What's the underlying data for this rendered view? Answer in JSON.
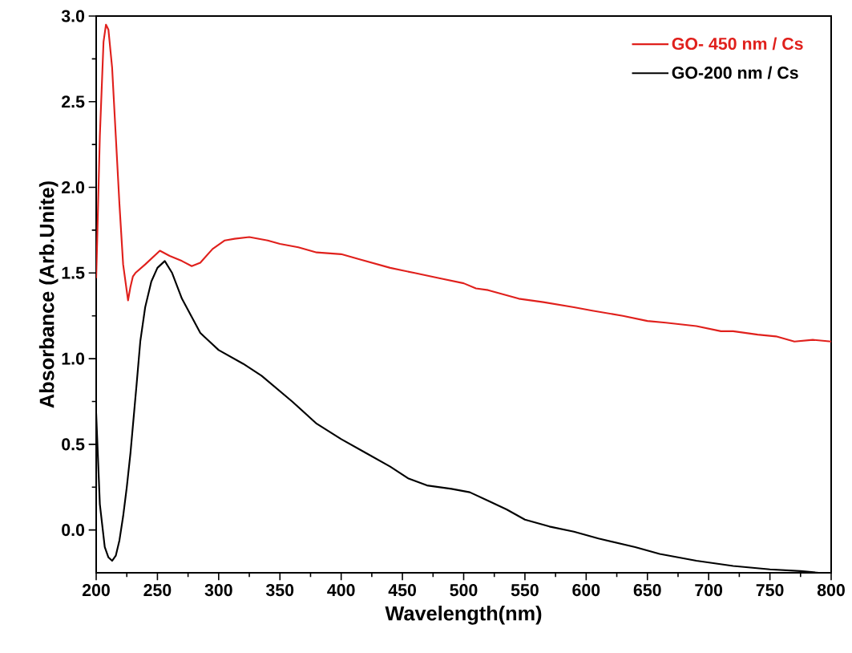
{
  "chart_data": {
    "type": "line",
    "xlabel": "Wavelength(nm)",
    "ylabel": "Absorbance (Arb.Unite)",
    "xlim": [
      200,
      800
    ],
    "ylim": [
      -0.25,
      3.0
    ],
    "xticks": [
      200,
      250,
      300,
      350,
      400,
      450,
      500,
      550,
      600,
      650,
      700,
      750,
      800
    ],
    "yticks": [
      {
        "value": 0,
        "label": "0.0"
      },
      0.5,
      {
        "value": 1,
        "label": "1.0"
      },
      1.5,
      {
        "value": 2,
        "label": "2.0"
      },
      2.5,
      {
        "value": 3,
        "label": "3.0"
      }
    ],
    "legend": "top right",
    "series": [
      {
        "name": "GO- 450 nm / Cs",
        "color": "#e0201c",
        "x": [
          200,
          200.5,
          203,
          206,
          208,
          210,
          213,
          216,
          219,
          222,
          226,
          228,
          230,
          232,
          240,
          252,
          260,
          270,
          278,
          285,
          295,
          305,
          313,
          325,
          340,
          350,
          365,
          380,
          400,
          415,
          440,
          460,
          480,
          500,
          510,
          520,
          545,
          565,
          590,
          605,
          630,
          650,
          665,
          690,
          710,
          720,
          740,
          755,
          770,
          785,
          800
        ],
        "values": [
          1.47,
          1.6,
          2.3,
          2.85,
          2.95,
          2.92,
          2.7,
          2.3,
          1.9,
          1.55,
          1.34,
          1.42,
          1.48,
          1.5,
          1.55,
          1.63,
          1.6,
          1.57,
          1.54,
          1.56,
          1.64,
          1.69,
          1.7,
          1.71,
          1.69,
          1.67,
          1.65,
          1.62,
          1.61,
          1.58,
          1.53,
          1.5,
          1.47,
          1.44,
          1.41,
          1.4,
          1.35,
          1.33,
          1.3,
          1.28,
          1.25,
          1.22,
          1.21,
          1.19,
          1.16,
          1.16,
          1.14,
          1.13,
          1.1,
          1.11,
          1.1
        ]
      },
      {
        "name": "GO-200 nm / Cs",
        "color": "#000000",
        "x": [
          200,
          203,
          207,
          210,
          213,
          216,
          219,
          222,
          225,
          228,
          233,
          236,
          240,
          245,
          250,
          256,
          262,
          270,
          285,
          300,
          320,
          335,
          360,
          380,
          400,
          420,
          440,
          455,
          470,
          490,
          505,
          520,
          535,
          550,
          570,
          590,
          610,
          640,
          660,
          690,
          720,
          750,
          775,
          790
        ],
        "values": [
          0.68,
          0.15,
          -0.1,
          -0.16,
          -0.18,
          -0.15,
          -0.06,
          0.08,
          0.25,
          0.45,
          0.85,
          1.1,
          1.3,
          1.45,
          1.53,
          1.57,
          1.5,
          1.35,
          1.15,
          1.05,
          0.97,
          0.9,
          0.75,
          0.62,
          0.53,
          0.45,
          0.37,
          0.3,
          0.26,
          0.24,
          0.22,
          0.17,
          0.12,
          0.06,
          0.02,
          -0.01,
          -0.05,
          -0.1,
          -0.14,
          -0.18,
          -0.21,
          -0.23,
          -0.24,
          -0.25
        ]
      }
    ]
  }
}
